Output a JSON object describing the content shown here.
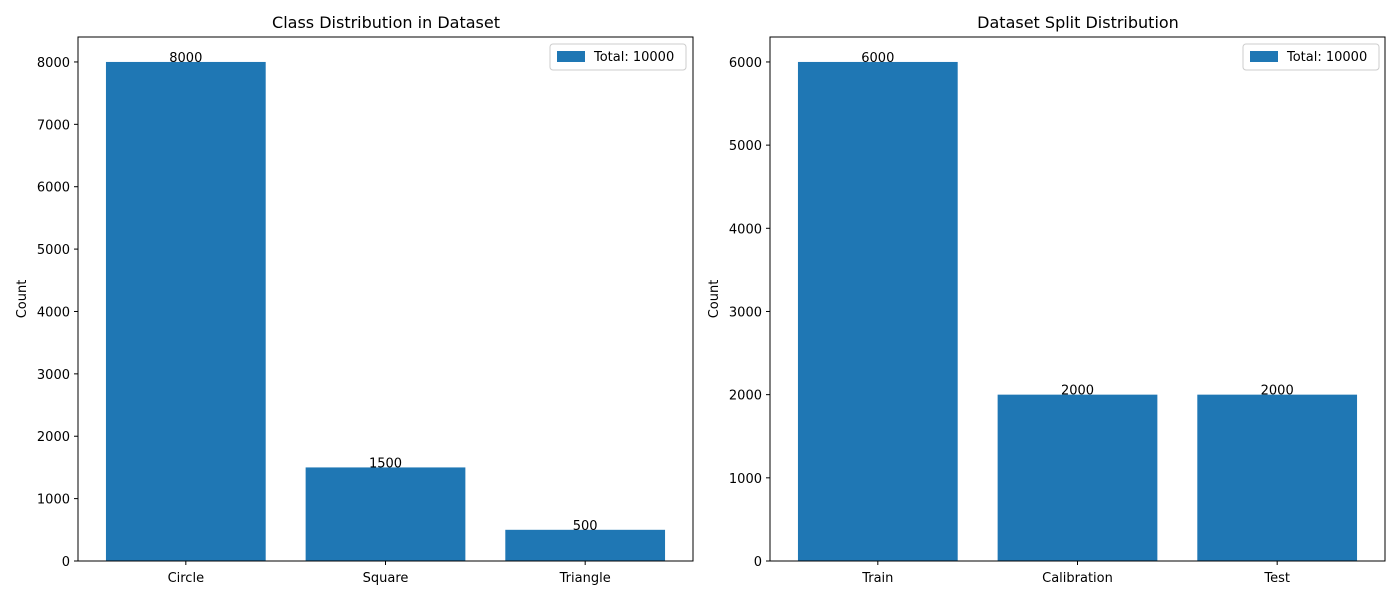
{
  "chart_data": [
    {
      "type": "bar",
      "title": "Class Distribution in Dataset",
      "xlabel": "",
      "ylabel": "Count",
      "categories": [
        "Circle",
        "Square",
        "Triangle"
      ],
      "values": [
        8000,
        1500,
        500
      ],
      "data_labels": [
        "8000",
        "1500",
        "500"
      ],
      "ylim": [
        0,
        8400
      ],
      "yticks": [
        0,
        1000,
        2000,
        3000,
        4000,
        5000,
        6000,
        7000,
        8000
      ],
      "legend": {
        "label": "Total: 10000",
        "position": "top-right"
      },
      "color": "#1f77b4",
      "grid": false
    },
    {
      "type": "bar",
      "title": "Dataset Split Distribution",
      "xlabel": "",
      "ylabel": "Count",
      "categories": [
        "Train",
        "Calibration",
        "Test"
      ],
      "values": [
        6000,
        2000,
        2000
      ],
      "data_labels": [
        "6000",
        "2000",
        "2000"
      ],
      "ylim": [
        0,
        6300
      ],
      "yticks": [
        0,
        1000,
        2000,
        3000,
        4000,
        5000,
        6000
      ],
      "legend": {
        "label": "Total: 10000",
        "position": "top-right"
      },
      "color": "#1f77b4",
      "grid": false
    }
  ]
}
